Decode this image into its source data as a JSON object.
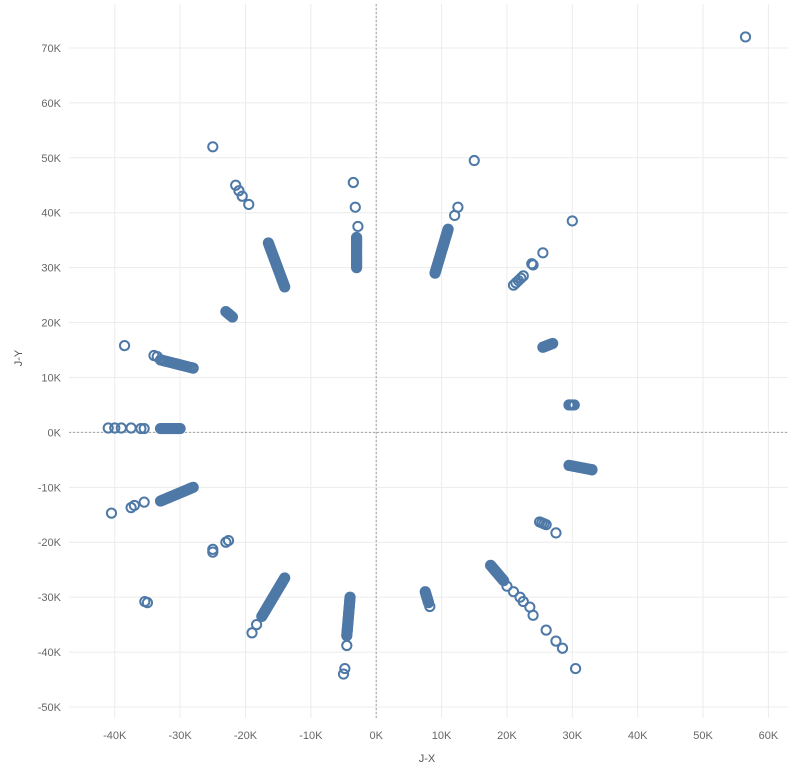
{
  "chart_data": {
    "type": "scatter",
    "title": "",
    "xlabel": "J-X",
    "ylabel": "J-Y",
    "xlim": [
      -47000,
      63000
    ],
    "ylim": [
      -52000,
      78000
    ],
    "x_ticks": [
      -40000,
      -30000,
      -20000,
      -10000,
      0,
      10000,
      20000,
      30000,
      40000,
      50000,
      60000
    ],
    "x_tick_labels": [
      "-40K",
      "-30K",
      "-20K",
      "-10K",
      "0K",
      "10K",
      "20K",
      "30K",
      "40K",
      "50K",
      "60K"
    ],
    "y_ticks": [
      -50000,
      -40000,
      -30000,
      -20000,
      -10000,
      0,
      10000,
      20000,
      30000,
      40000,
      50000,
      60000,
      70000
    ],
    "y_tick_labels": [
      "-50K",
      "-40K",
      "-30K",
      "-20K",
      "-10K",
      "0K",
      "10K",
      "20K",
      "30K",
      "40K",
      "50K",
      "60K",
      "70K"
    ],
    "grid": true,
    "zero_lines": true,
    "marker": "hollow-circle",
    "color": "#4e79a7",
    "segments": [
      {
        "from": [
          -14000,
          26500
        ],
        "to": [
          -16500,
          34500
        ],
        "n": 26
      },
      {
        "from": [
          -3000,
          30000
        ],
        "to": [
          -3000,
          35500
        ],
        "n": 20
      },
      {
        "from": [
          9000,
          29000
        ],
        "to": [
          11000,
          37000
        ],
        "n": 30
      },
      {
        "from": [
          -22000,
          21000
        ],
        "to": [
          -23000,
          22000
        ],
        "n": 6
      },
      {
        "from": [
          -28000,
          11700
        ],
        "to": [
          -33000,
          13200
        ],
        "n": 18
      },
      {
        "from": [
          -30000,
          700
        ],
        "to": [
          -33000,
          700
        ],
        "n": 14
      },
      {
        "from": [
          -28000,
          -10000
        ],
        "to": [
          -33000,
          -12500
        ],
        "n": 22
      },
      {
        "from": [
          -14000,
          -26500
        ],
        "to": [
          -17500,
          -33500
        ],
        "n": 28
      },
      {
        "from": [
          -4000,
          -30000
        ],
        "to": [
          -4500,
          -37000
        ],
        "n": 26
      },
      {
        "from": [
          7500,
          -29000
        ],
        "to": [
          8000,
          -31000
        ],
        "n": 8
      },
      {
        "from": [
          17500,
          -24200
        ],
        "to": [
          19500,
          -27000
        ],
        "n": 14
      },
      {
        "from": [
          29500,
          -6000
        ],
        "to": [
          33000,
          -6800
        ],
        "n": 14
      },
      {
        "from": [
          25500,
          15500
        ],
        "to": [
          27000,
          16200
        ],
        "n": 8
      },
      {
        "from": [
          29500,
          5000
        ],
        "to": [
          30300,
          5000
        ],
        "n": 4
      },
      {
        "from": [
          21000,
          26800
        ],
        "to": [
          22500,
          28500
        ],
        "n": 5
      },
      {
        "from": [
          25000,
          -16300
        ],
        "to": [
          26000,
          -16800
        ],
        "n": 4
      }
    ],
    "points": [
      [
        56500,
        72000
      ],
      [
        -25000,
        52000
      ],
      [
        15000,
        49500
      ],
      [
        -21500,
        45000
      ],
      [
        -21000,
        44000
      ],
      [
        -20500,
        43000
      ],
      [
        -19500,
        41500
      ],
      [
        -3500,
        45500
      ],
      [
        -3200,
        41000
      ],
      [
        -2800,
        37500
      ],
      [
        12500,
        41000
      ],
      [
        12000,
        39500
      ],
      [
        30000,
        38500
      ],
      [
        25500,
        32700
      ],
      [
        23800,
        30700
      ],
      [
        24000,
        30500
      ],
      [
        -38500,
        15800
      ],
      [
        -34000,
        14000
      ],
      [
        -33500,
        13800
      ],
      [
        -41000,
        800
      ],
      [
        -40000,
        800
      ],
      [
        -39000,
        800
      ],
      [
        -37500,
        800
      ],
      [
        -36000,
        700
      ],
      [
        -35500,
        700
      ],
      [
        -40500,
        -14700
      ],
      [
        -37500,
        -13700
      ],
      [
        -37000,
        -13300
      ],
      [
        -35500,
        -12700
      ],
      [
        -35000,
        -31000
      ],
      [
        -35400,
        -30800
      ],
      [
        -25000,
        -21800
      ],
      [
        -25000,
        -21300
      ],
      [
        -23000,
        -20000
      ],
      [
        -22600,
        -19700
      ],
      [
        -19000,
        -36500
      ],
      [
        -18300,
        -35000
      ],
      [
        -4500,
        -38800
      ],
      [
        -4800,
        -43000
      ],
      [
        -5000,
        -44000
      ],
      [
        8200,
        -31700
      ],
      [
        20000,
        -28000
      ],
      [
        21000,
        -29000
      ],
      [
        22000,
        -30000
      ],
      [
        22500,
        -30800
      ],
      [
        23500,
        -31800
      ],
      [
        24000,
        -33300
      ],
      [
        26000,
        -36000
      ],
      [
        27500,
        -38000
      ],
      [
        28500,
        -39300
      ],
      [
        30500,
        -43000
      ],
      [
        27500,
        -18300
      ],
      [
        29500,
        5000
      ],
      [
        33000,
        -6800
      ]
    ]
  }
}
